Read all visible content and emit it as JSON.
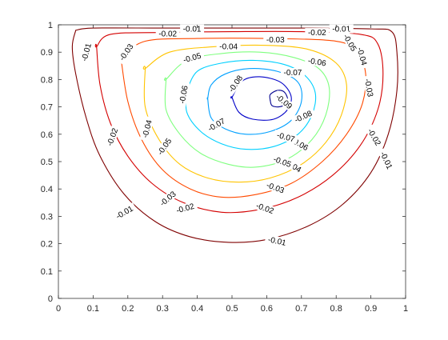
{
  "chart_data": {
    "type": "contour",
    "title": "",
    "xlabel": "",
    "ylabel": "",
    "xlim": [
      0,
      1
    ],
    "ylim": [
      0,
      1
    ],
    "grid": false,
    "x_ticks": [
      "0",
      "0.1",
      "0.2",
      "0.3",
      "0.4",
      "0.5",
      "0.6",
      "0.7",
      "0.8",
      "0.9",
      "1"
    ],
    "y_ticks": [
      "0",
      "0.1",
      "0.2",
      "0.3",
      "0.4",
      "0.5",
      "0.6",
      "0.7",
      "0.8",
      "0.9",
      "1"
    ],
    "levels": [
      {
        "value": -0.01,
        "color": "#7f0000",
        "closed": false,
        "points": [
          [
            0.05,
            0.98
          ],
          [
            0.04,
            0.92
          ],
          [
            0.05,
            0.82
          ],
          [
            0.08,
            0.66
          ],
          [
            0.12,
            0.52
          ],
          [
            0.19,
            0.38
          ],
          [
            0.28,
            0.28
          ],
          [
            0.38,
            0.225
          ],
          [
            0.49,
            0.205
          ],
          [
            0.6,
            0.215
          ],
          [
            0.72,
            0.265
          ],
          [
            0.82,
            0.345
          ],
          [
            0.9,
            0.46
          ],
          [
            0.95,
            0.6
          ],
          [
            0.975,
            0.76
          ],
          [
            0.975,
            0.9
          ],
          [
            0.96,
            0.975
          ],
          [
            0.9,
            0.985
          ],
          [
            0.7,
            0.988
          ],
          [
            0.5,
            0.988
          ],
          [
            0.3,
            0.988
          ],
          [
            0.1,
            0.988
          ],
          [
            0.05,
            0.98
          ]
        ],
        "labels": [
          {
            "text": "-0.01",
            "x": 0.08,
            "y": 0.9,
            "angle": 75
          },
          {
            "text": "-0.01",
            "x": 0.19,
            "y": 0.315,
            "angle": 30
          },
          {
            "text": "-0.01",
            "x": 0.63,
            "y": 0.21,
            "angle": -12
          },
          {
            "text": "-0.01",
            "x": 0.945,
            "y": 0.505,
            "angle": -65
          },
          {
            "text": "-0.01",
            "x": 0.385,
            "y": 0.985,
            "angle": 0
          },
          {
            "text": "-0.01",
            "x": 0.815,
            "y": 0.985,
            "angle": 0
          }
        ]
      },
      {
        "value": -0.02,
        "color": "#d40000",
        "closed": true,
        "points": [
          [
            0.11,
            0.92
          ],
          [
            0.12,
            0.78
          ],
          [
            0.15,
            0.64
          ],
          [
            0.2,
            0.52
          ],
          [
            0.27,
            0.42
          ],
          [
            0.36,
            0.35
          ],
          [
            0.47,
            0.315
          ],
          [
            0.58,
            0.325
          ],
          [
            0.69,
            0.37
          ],
          [
            0.79,
            0.45
          ],
          [
            0.87,
            0.56
          ],
          [
            0.92,
            0.69
          ],
          [
            0.935,
            0.82
          ],
          [
            0.92,
            0.93
          ],
          [
            0.87,
            0.965
          ],
          [
            0.7,
            0.975
          ],
          [
            0.5,
            0.975
          ],
          [
            0.3,
            0.972
          ],
          [
            0.15,
            0.965
          ],
          [
            0.11,
            0.92
          ]
        ],
        "labels": [
          {
            "text": "-0.02",
            "x": 0.155,
            "y": 0.59,
            "angle": 70
          },
          {
            "text": "-0.02",
            "x": 0.365,
            "y": 0.33,
            "angle": 15
          },
          {
            "text": "-0.02",
            "x": 0.595,
            "y": 0.33,
            "angle": -20
          },
          {
            "text": "-0.02",
            "x": 0.91,
            "y": 0.59,
            "angle": -60
          },
          {
            "text": "-0.02",
            "x": 0.315,
            "y": 0.968,
            "angle": 0
          },
          {
            "text": "-0.02",
            "x": 0.745,
            "y": 0.972,
            "angle": 0
          }
        ]
      },
      {
        "value": -0.03,
        "color": "#ff4a00",
        "closed": true,
        "points": [
          [
            0.18,
            0.88
          ],
          [
            0.2,
            0.72
          ],
          [
            0.24,
            0.58
          ],
          [
            0.3,
            0.47
          ],
          [
            0.38,
            0.4
          ],
          [
            0.47,
            0.37
          ],
          [
            0.57,
            0.38
          ],
          [
            0.67,
            0.42
          ],
          [
            0.76,
            0.5
          ],
          [
            0.83,
            0.6
          ],
          [
            0.875,
            0.71
          ],
          [
            0.885,
            0.82
          ],
          [
            0.86,
            0.9
          ],
          [
            0.8,
            0.94
          ],
          [
            0.6,
            0.95
          ],
          [
            0.4,
            0.95
          ],
          [
            0.25,
            0.94
          ],
          [
            0.18,
            0.88
          ]
        ],
        "labels": [
          {
            "text": "-0.03",
            "x": 0.195,
            "y": 0.9,
            "angle": 55
          },
          {
            "text": "-0.03",
            "x": 0.315,
            "y": 0.365,
            "angle": 40
          },
          {
            "text": "-0.03",
            "x": 0.625,
            "y": 0.405,
            "angle": -20
          },
          {
            "text": "-0.03",
            "x": 0.895,
            "y": 0.77,
            "angle": -80
          },
          {
            "text": "-0.03",
            "x": 0.625,
            "y": 0.946,
            "angle": 0
          }
        ]
      },
      {
        "value": -0.04,
        "color": "#ffc400",
        "closed": true,
        "points": [
          [
            0.25,
            0.84
          ],
          [
            0.25,
            0.7
          ],
          [
            0.29,
            0.58
          ],
          [
            0.35,
            0.49
          ],
          [
            0.43,
            0.44
          ],
          [
            0.52,
            0.425
          ],
          [
            0.61,
            0.44
          ],
          [
            0.7,
            0.49
          ],
          [
            0.77,
            0.57
          ],
          [
            0.815,
            0.67
          ],
          [
            0.83,
            0.78
          ],
          [
            0.8,
            0.86
          ],
          [
            0.72,
            0.91
          ],
          [
            0.6,
            0.925
          ],
          [
            0.45,
            0.92
          ],
          [
            0.32,
            0.9
          ],
          [
            0.25,
            0.84
          ]
        ],
        "labels": [
          {
            "text": "-0.04",
            "x": 0.255,
            "y": 0.62,
            "angle": 75
          },
          {
            "text": "-0.04",
            "x": 0.675,
            "y": 0.485,
            "angle": -30
          },
          {
            "text": "-0.04",
            "x": 0.875,
            "y": 0.885,
            "angle": -75
          },
          {
            "text": "-0.04",
            "x": 0.49,
            "y": 0.921,
            "angle": 0
          }
        ]
      },
      {
        "value": -0.05,
        "color": "#7fff7f",
        "closed": true,
        "points": [
          [
            0.31,
            0.8
          ],
          [
            0.31,
            0.69
          ],
          [
            0.35,
            0.6
          ],
          [
            0.41,
            0.53
          ],
          [
            0.49,
            0.49
          ],
          [
            0.57,
            0.48
          ],
          [
            0.66,
            0.51
          ],
          [
            0.73,
            0.58
          ],
          [
            0.77,
            0.67
          ],
          [
            0.78,
            0.77
          ],
          [
            0.75,
            0.84
          ],
          [
            0.68,
            0.88
          ],
          [
            0.58,
            0.9
          ],
          [
            0.47,
            0.895
          ],
          [
            0.37,
            0.87
          ],
          [
            0.31,
            0.8
          ]
        ],
        "labels": [
          {
            "text": "-0.05",
            "x": 0.305,
            "y": 0.555,
            "angle": 55
          },
          {
            "text": "-0.05",
            "x": 0.645,
            "y": 0.5,
            "angle": -20
          },
          {
            "text": "-0.05",
            "x": 0.385,
            "y": 0.88,
            "angle": 15
          },
          {
            "text": "-0.05",
            "x": 0.84,
            "y": 0.935,
            "angle": -60
          }
        ]
      },
      {
        "value": -0.06,
        "color": "#00d0ff",
        "closed": true,
        "points": [
          [
            0.37,
            0.76
          ],
          [
            0.37,
            0.68
          ],
          [
            0.41,
            0.61
          ],
          [
            0.47,
            0.565
          ],
          [
            0.54,
            0.545
          ],
          [
            0.62,
            0.555
          ],
          [
            0.69,
            0.6
          ],
          [
            0.73,
            0.67
          ],
          [
            0.74,
            0.75
          ],
          [
            0.71,
            0.815
          ],
          [
            0.65,
            0.855
          ],
          [
            0.56,
            0.87
          ],
          [
            0.47,
            0.86
          ],
          [
            0.4,
            0.83
          ],
          [
            0.37,
            0.76
          ]
        ],
        "labels": [
          {
            "text": "-0.06",
            "x": 0.36,
            "y": 0.745,
            "angle": 80
          },
          {
            "text": "-0.06",
            "x": 0.695,
            "y": 0.565,
            "angle": -30
          },
          {
            "text": "-0.06",
            "x": 0.745,
            "y": 0.865,
            "angle": -10
          }
        ]
      },
      {
        "value": -0.07,
        "color": "#00a0ff",
        "closed": true,
        "points": [
          [
            0.43,
            0.73
          ],
          [
            0.44,
            0.66
          ],
          [
            0.48,
            0.62
          ],
          [
            0.54,
            0.6
          ],
          [
            0.61,
            0.61
          ],
          [
            0.67,
            0.65
          ],
          [
            0.7,
            0.72
          ],
          [
            0.69,
            0.79
          ],
          [
            0.63,
            0.83
          ],
          [
            0.55,
            0.84
          ],
          [
            0.48,
            0.82
          ],
          [
            0.44,
            0.78
          ],
          [
            0.43,
            0.73
          ]
        ],
        "labels": [
          {
            "text": "-0.07",
            "x": 0.455,
            "y": 0.635,
            "angle": 30
          },
          {
            "text": "-0.07",
            "x": 0.655,
            "y": 0.59,
            "angle": -15
          },
          {
            "text": "-0.07",
            "x": 0.675,
            "y": 0.826,
            "angle": 0
          }
        ]
      },
      {
        "value": -0.08,
        "color": "#0000c8",
        "closed": true,
        "points": [
          [
            0.5,
            0.735
          ],
          [
            0.52,
            0.68
          ],
          [
            0.56,
            0.655
          ],
          [
            0.62,
            0.655
          ],
          [
            0.66,
            0.69
          ],
          [
            0.67,
            0.74
          ],
          [
            0.64,
            0.79
          ],
          [
            0.58,
            0.81
          ],
          [
            0.53,
            0.795
          ],
          [
            0.5,
            0.735
          ]
        ],
        "labels": [
          {
            "text": "-0.08",
            "x": 0.51,
            "y": 0.785,
            "angle": 55
          },
          {
            "text": "-0.08",
            "x": 0.705,
            "y": 0.665,
            "angle": 25
          }
        ]
      },
      {
        "value": -0.09,
        "color": "#00008f",
        "closed": true,
        "points": [
          [
            0.61,
            0.725
          ],
          [
            0.615,
            0.705
          ],
          [
            0.635,
            0.7
          ],
          [
            0.655,
            0.71
          ],
          [
            0.66,
            0.73
          ],
          [
            0.65,
            0.755
          ],
          [
            0.63,
            0.76
          ],
          [
            0.61,
            0.745
          ],
          [
            0.61,
            0.725
          ]
        ],
        "labels": [
          {
            "text": "-0.09",
            "x": 0.65,
            "y": 0.72,
            "angle": -40
          }
        ]
      }
    ]
  }
}
